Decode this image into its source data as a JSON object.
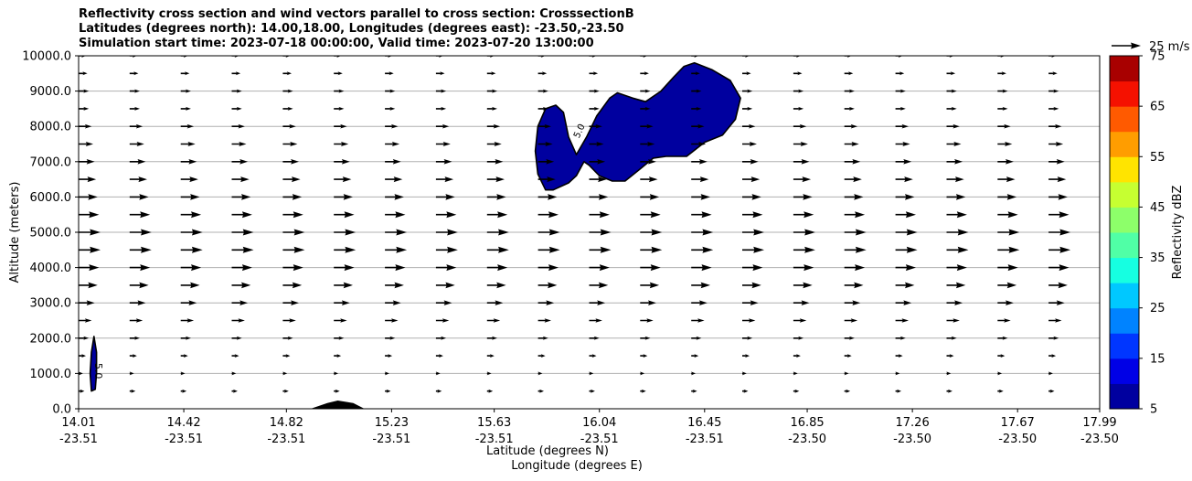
{
  "chart_data": {
    "type": "cross_section_reflectivity_wind",
    "title_lines": [
      "Reflectivity cross section and wind vectors parallel to cross section: CrosssectionB",
      "Latitudes (degrees north): 14.00,18.00, Longitudes (degrees east): -23.50,-23.50",
      "Simulation start time: 2023-07-18 00:00:00, Valid time: 2023-07-20 13:00:00"
    ],
    "ylabel": "Altitude (meters)",
    "xlabel_line1": "Latitude (degrees N)",
    "xlabel_line2": "Longitude (degrees E)",
    "ylim": [
      0,
      10000
    ],
    "y_ticks": [
      0,
      1000,
      2000,
      3000,
      4000,
      5000,
      6000,
      7000,
      8000,
      9000,
      10000
    ],
    "y_tick_labels": [
      "0.0",
      "1000.0",
      "2000.0",
      "3000.0",
      "4000.0",
      "5000.0",
      "6000.0",
      "7000.0",
      "8000.0",
      "9000.0",
      "10000.0"
    ],
    "x_tick_positions": [
      14.01,
      14.42,
      14.82,
      15.23,
      15.63,
      16.04,
      16.45,
      16.85,
      17.26,
      17.67,
      17.99
    ],
    "x_tick_labels_lat": [
      "14.01",
      "14.42",
      "14.82",
      "15.23",
      "15.63",
      "16.04",
      "16.45",
      "16.85",
      "17.26",
      "17.67",
      "17.99"
    ],
    "x_tick_labels_lon": [
      "-23.51",
      "-23.51",
      "-23.51",
      "-23.51",
      "-23.51",
      "-23.51",
      "-23.51",
      "-23.50",
      "-23.50",
      "-23.50",
      "-23.50"
    ],
    "xlim": [
      14.01,
      17.99
    ],
    "horizontal_grid": true,
    "colorbar": {
      "label": "Reflectivity dBZ",
      "levels": [
        5,
        10,
        15,
        20,
        25,
        30,
        35,
        40,
        45,
        50,
        55,
        60,
        65,
        70,
        75
      ],
      "tick_labels": [
        "5",
        "15",
        "25",
        "35",
        "45",
        "55",
        "65",
        "75"
      ],
      "colors": [
        "#00009f",
        "#0000e6",
        "#0036ff",
        "#0083ff",
        "#00c8ff",
        "#16ffe1",
        "#50ffa6",
        "#8dff6a",
        "#c6ff31",
        "#ffe400",
        "#ff9d00",
        "#ff5a00",
        "#f51100",
        "#a80000"
      ]
    },
    "quiver_key": {
      "label": "25 m/s",
      "speed": 25
    },
    "contour_labels": [
      "5.0",
      "5.0"
    ],
    "wind_grid": {
      "x_count": 21,
      "altitudes": [
        500,
        1000,
        1500,
        2000,
        2500,
        3000,
        3500,
        4000,
        4500,
        5000,
        5500,
        6000,
        6500,
        7000,
        7500,
        8000,
        8500,
        9000,
        9500,
        10000
      ],
      "speed_by_altitude": [
        4,
        3,
        5,
        7,
        9,
        11,
        13,
        14,
        15,
        15,
        14,
        13,
        12,
        11,
        10,
        9,
        7,
        7,
        6,
        5
      ]
    },
    "reflectivity_regions": [
      {
        "dbz": 5,
        "points": [
          [
            15.8,
            6650
          ],
          [
            15.83,
            6200
          ],
          [
            15.86,
            6200
          ],
          [
            15.92,
            6400
          ],
          [
            15.95,
            6600
          ],
          [
            15.98,
            7000
          ],
          [
            16.0,
            6900
          ],
          [
            16.04,
            6600
          ],
          [
            16.09,
            6450
          ],
          [
            16.14,
            6450
          ],
          [
            16.2,
            6800
          ],
          [
            16.25,
            7100
          ],
          [
            16.3,
            7150
          ],
          [
            16.38,
            7150
          ],
          [
            16.45,
            7550
          ],
          [
            16.52,
            7750
          ],
          [
            16.57,
            8200
          ],
          [
            16.59,
            8800
          ],
          [
            16.55,
            9300
          ],
          [
            16.48,
            9600
          ],
          [
            16.41,
            9800
          ],
          [
            16.37,
            9700
          ],
          [
            16.33,
            9400
          ],
          [
            16.28,
            9000
          ],
          [
            16.22,
            8700
          ],
          [
            16.17,
            8800
          ],
          [
            16.11,
            8950
          ],
          [
            16.08,
            8800
          ],
          [
            16.03,
            8300
          ],
          [
            15.99,
            7700
          ],
          [
            15.95,
            7200
          ],
          [
            15.92,
            7700
          ],
          [
            15.9,
            8400
          ],
          [
            15.87,
            8600
          ],
          [
            15.83,
            8500
          ],
          [
            15.8,
            8000
          ],
          [
            15.79,
            7300
          ]
        ]
      },
      {
        "dbz": 5,
        "points": [
          [
            14.06,
            500
          ],
          [
            14.075,
            550
          ],
          [
            14.08,
            1000
          ],
          [
            14.08,
            1600
          ],
          [
            14.07,
            2050
          ],
          [
            14.06,
            1600
          ],
          [
            14.055,
            1000
          ]
        ]
      }
    ],
    "terrain": {
      "x": [
        14.92,
        14.98,
        15.02,
        15.08,
        15.12
      ],
      "altitude": [
        0,
        150,
        220,
        150,
        0
      ]
    }
  }
}
